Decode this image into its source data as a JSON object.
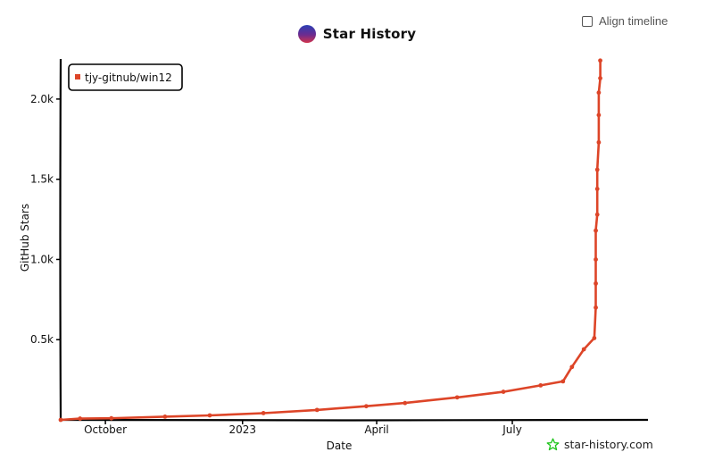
{
  "header": {
    "title": "Star History"
  },
  "controls": {
    "align_timeline_label": "Align timeline",
    "align_timeline_checked": false
  },
  "watermark": {
    "text": "star-history.com"
  },
  "colors": {
    "series": "#dd4528",
    "logo_top": "#2b3fb5",
    "logo_bottom": "#d2334c",
    "watermark_icon": "#22c51f"
  },
  "chart_data": {
    "type": "line",
    "title": "Star History",
    "xlabel": "Date",
    "ylabel": "GitHub Stars",
    "ylim": [
      0,
      2250
    ],
    "xlim": [
      "2022-09-01",
      "2023-09-30"
    ],
    "yticks": [
      {
        "value": 500,
        "label": "0.5k"
      },
      {
        "value": 1000,
        "label": "1.0k"
      },
      {
        "value": 1500,
        "label": "1.5k"
      },
      {
        "value": 2000,
        "label": "2.0k"
      }
    ],
    "xticks": [
      {
        "date": "2022-10-01",
        "label": "October"
      },
      {
        "date": "2023-01-01",
        "label": "2023"
      },
      {
        "date": "2023-04-01",
        "label": "April"
      },
      {
        "date": "2023-07-01",
        "label": "July"
      }
    ],
    "legend_position": "top-left",
    "grid": false,
    "series": [
      {
        "name": "tjy-gitnub/win12",
        "color": "#dd4528",
        "points": [
          {
            "x": "2022-09-01",
            "y": 0
          },
          {
            "x": "2022-09-14",
            "y": 8
          },
          {
            "x": "2022-10-05",
            "y": 10
          },
          {
            "x": "2022-11-10",
            "y": 20
          },
          {
            "x": "2022-12-10",
            "y": 28
          },
          {
            "x": "2023-01-15",
            "y": 42
          },
          {
            "x": "2023-02-20",
            "y": 62
          },
          {
            "x": "2023-03-25",
            "y": 85
          },
          {
            "x": "2023-04-20",
            "y": 105
          },
          {
            "x": "2023-05-25",
            "y": 140
          },
          {
            "x": "2023-06-25",
            "y": 175
          },
          {
            "x": "2023-07-20",
            "y": 215
          },
          {
            "x": "2023-08-04",
            "y": 240
          },
          {
            "x": "2023-08-10",
            "y": 330
          },
          {
            "x": "2023-08-18",
            "y": 440
          },
          {
            "x": "2023-08-25",
            "y": 510
          },
          {
            "x": "2023-08-26",
            "y": 700
          },
          {
            "x": "2023-08-26",
            "y": 850
          },
          {
            "x": "2023-08-26",
            "y": 1000
          },
          {
            "x": "2023-08-26",
            "y": 1180
          },
          {
            "x": "2023-08-27",
            "y": 1280
          },
          {
            "x": "2023-08-27",
            "y": 1440
          },
          {
            "x": "2023-08-27",
            "y": 1560
          },
          {
            "x": "2023-08-28",
            "y": 1730
          },
          {
            "x": "2023-08-28",
            "y": 1900
          },
          {
            "x": "2023-08-28",
            "y": 2040
          },
          {
            "x": "2023-08-29",
            "y": 2130
          },
          {
            "x": "2023-08-29",
            "y": 2240
          }
        ]
      }
    ]
  }
}
